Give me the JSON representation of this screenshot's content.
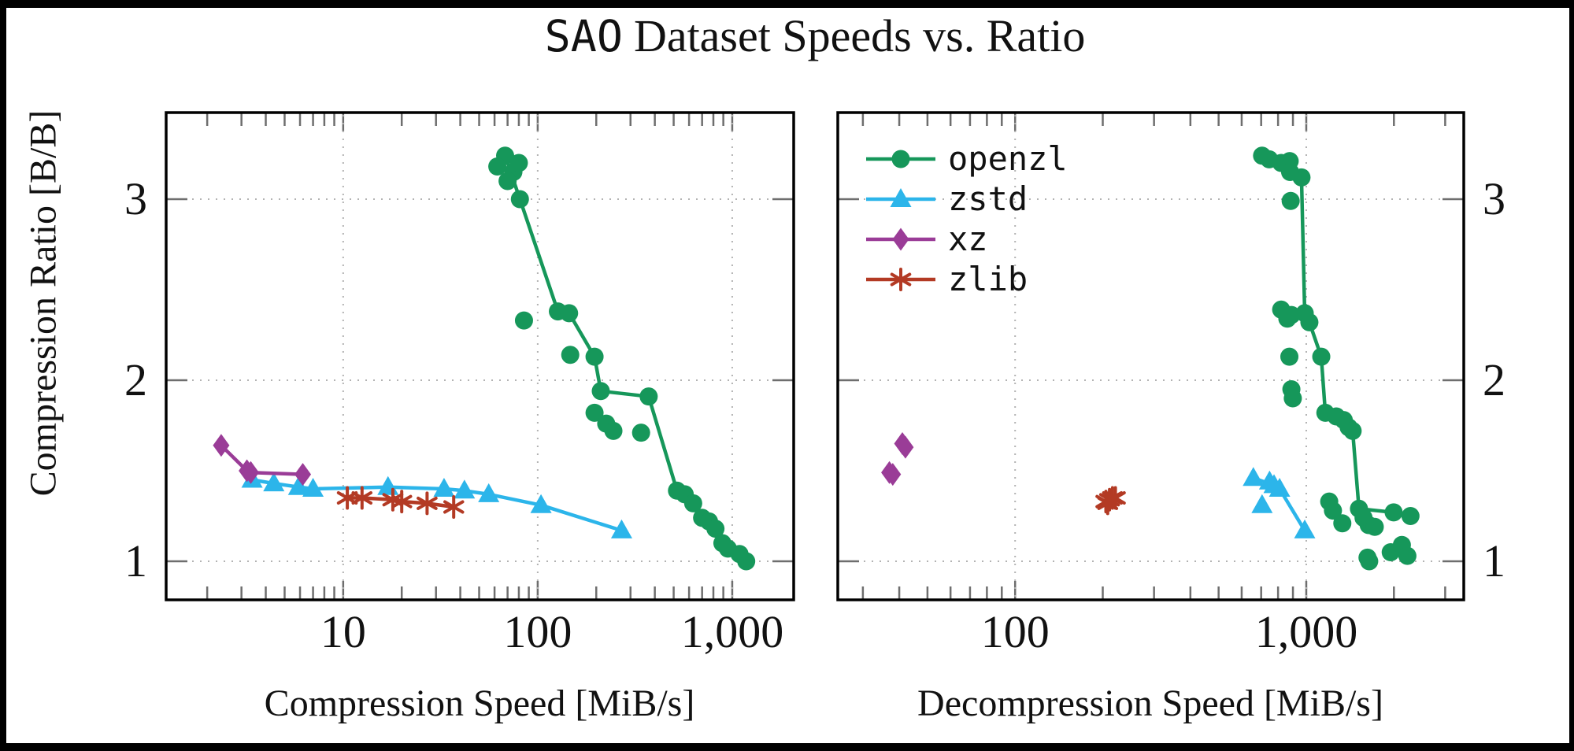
{
  "title": {
    "dataset": "SAO",
    "rest": "Dataset Speeds vs. Ratio"
  },
  "y_axis_label": "Compression Ratio [B/B]",
  "legend": {
    "position": "top-left-of-right-plot",
    "entries": [
      {
        "series": "openzl",
        "label": "openzl"
      },
      {
        "series": "zstd",
        "label": "zstd"
      },
      {
        "series": "xz",
        "label": "xz"
      },
      {
        "series": "zlib",
        "label": "zlib"
      }
    ]
  },
  "series_styles": {
    "openzl": {
      "color": "#16975a",
      "marker": "circle",
      "z": 4
    },
    "zstd": {
      "color": "#2cb5ea",
      "marker": "triangle",
      "z": 1
    },
    "xz": {
      "color": "#9a3c97",
      "marker": "diamond",
      "z": 3
    },
    "zlib": {
      "color": "#b33a24",
      "marker": "star",
      "z": 2
    }
  },
  "frame_color": "#000000",
  "grid_color": "#b3b3b3",
  "tick_color": "#6e6e6e",
  "chart_data": [
    {
      "type": "scatter",
      "name": "compression",
      "xlabel": "Compression Speed [MiB/s]",
      "ylabel": "Compression Ratio [B/B]",
      "x_scale": "log",
      "xlim": [
        1.23,
        2070
      ],
      "ylim": [
        0.787,
        3.478
      ],
      "x_ticks": [
        10,
        100,
        1000
      ],
      "x_tick_labels": [
        "10",
        "100",
        "1,000"
      ],
      "y_ticks": [
        1,
        2,
        3
      ],
      "y_tick_labels": [
        "1",
        "2",
        "3"
      ],
      "y_label_side": "left",
      "grid": "dotted",
      "series": [
        {
          "name": "openzl",
          "line": [
            [
              68,
              3.24
            ],
            [
              81,
              3.0
            ],
            [
              127,
              2.38
            ],
            [
              145,
              2.37
            ],
            [
              196,
              2.13
            ],
            [
              211,
              1.94
            ],
            [
              372,
              1.91
            ],
            [
              520,
              1.39
            ],
            [
              570,
              1.37
            ],
            [
              630,
              1.32
            ],
            [
              700,
              1.24
            ],
            [
              760,
              1.22
            ],
            [
              820,
              1.18
            ],
            [
              890,
              1.1
            ],
            [
              950,
              1.07
            ],
            [
              1090,
              1.04
            ],
            [
              1180,
              1.0
            ]
          ],
          "extra_points": [
            [
              62,
              3.18
            ],
            [
              75,
              3.15
            ],
            [
              70,
              3.1
            ],
            [
              80,
              3.2
            ],
            [
              85,
              2.33
            ],
            [
              147,
              2.14
            ],
            [
              196,
              1.82
            ],
            [
              225,
              1.76
            ],
            [
              245,
              1.72
            ],
            [
              340,
              1.71
            ]
          ]
        },
        {
          "name": "zstd",
          "line": [
            [
              3.4,
              1.45
            ],
            [
              4.4,
              1.43
            ],
            [
              5.9,
              1.41
            ],
            [
              7.0,
              1.4
            ],
            [
              17,
              1.41
            ],
            [
              33,
              1.4
            ],
            [
              42,
              1.39
            ],
            [
              56,
              1.37
            ],
            [
              104,
              1.31
            ],
            [
              270,
              1.17
            ]
          ],
          "extra_points": []
        },
        {
          "name": "xz",
          "line": [
            [
              2.36,
              1.64
            ],
            [
              3.2,
              1.5
            ],
            [
              3.35,
              1.49
            ],
            [
              6.2,
              1.48
            ]
          ],
          "extra_points": []
        },
        {
          "name": "zlib",
          "line": [
            [
              10.5,
              1.35
            ],
            [
              12.5,
              1.35
            ],
            [
              18,
              1.34
            ],
            [
              20,
              1.33
            ],
            [
              27,
              1.32
            ],
            [
              37,
              1.3
            ]
          ],
          "extra_points": []
        }
      ]
    },
    {
      "type": "scatter",
      "name": "decompression",
      "xlabel": "Decompression Speed [MiB/s]",
      "ylabel": "Compression Ratio [B/B]",
      "x_scale": "log",
      "xlim": [
        24.6,
        3475
      ],
      "ylim": [
        0.787,
        3.478
      ],
      "x_ticks": [
        100,
        1000
      ],
      "x_tick_labels": [
        "100",
        "1,000"
      ],
      "y_ticks": [
        1,
        2,
        3
      ],
      "y_tick_labels": [
        "1",
        "2",
        "3"
      ],
      "y_label_side": "right",
      "grid": "dotted",
      "series": [
        {
          "name": "openzl",
          "line": [
            [
              877,
              3.21
            ],
            [
              963,
              3.12
            ],
            [
              988,
              2.37
            ],
            [
              1025,
              2.32
            ],
            [
              1126,
              2.13
            ],
            [
              1163,
              1.82
            ],
            [
              1268,
              1.8
            ],
            [
              1345,
              1.78
            ],
            [
              1398,
              1.74
            ],
            [
              1443,
              1.72
            ],
            [
              1517,
              1.29
            ],
            [
              1996,
              1.27
            ],
            [
              2280,
              1.25
            ]
          ],
          "extra_points": [
            [
              705,
              3.24
            ],
            [
              746,
              3.22
            ],
            [
              820,
              3.2
            ],
            [
              880,
              3.15
            ],
            [
              884,
              2.99
            ],
            [
              820,
              2.39
            ],
            [
              889,
              2.36
            ],
            [
              861,
              2.34
            ],
            [
              875,
              2.13
            ],
            [
              889,
              1.95
            ],
            [
              899,
              1.9
            ],
            [
              1199,
              1.33
            ],
            [
              1235,
              1.28
            ],
            [
              1330,
              1.21
            ],
            [
              1573,
              1.24
            ],
            [
              1638,
              1.2
            ],
            [
              1719,
              1.19
            ],
            [
              1623,
              1.02
            ],
            [
              1950,
              1.05
            ],
            [
              2130,
              1.09
            ],
            [
              2225,
              1.03
            ],
            [
              1645,
              1.0
            ]
          ]
        },
        {
          "name": "zstd",
          "line": [
            [
              658,
              1.46
            ],
            [
              775,
              1.42
            ],
            [
              810,
              1.4
            ],
            [
              988,
              1.17
            ]
          ],
          "extra_points": [
            [
              748,
              1.44
            ],
            [
              705,
              1.31
            ]
          ]
        },
        {
          "name": "xz",
          "line": [],
          "extra_points": [
            [
              41,
              1.65
            ],
            [
              42,
              1.63
            ],
            [
              37,
              1.49
            ],
            [
              38,
              1.48
            ]
          ]
        },
        {
          "name": "zlib",
          "line": [],
          "extra_points": [
            [
              205,
              1.33
            ],
            [
              211,
              1.34
            ],
            [
              216,
              1.35
            ],
            [
              221,
              1.35
            ],
            [
              208,
              1.32
            ]
          ]
        }
      ]
    }
  ]
}
